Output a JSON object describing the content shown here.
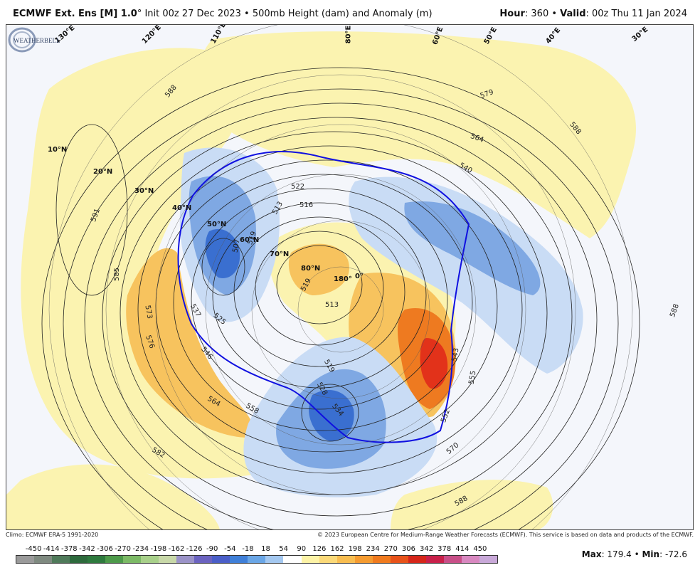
{
  "header": {
    "model": "ECMWF Ext. Ens [M] 1.0",
    "degree": "°",
    "init": " Init 00z 27 Dec 2023 • 500mb Height (dam) and Anomaly (m)",
    "hour_label": "Hour",
    "hour_value": ": 360 • ",
    "valid_label": "Valid",
    "valid_value": ": 00z Thu 11 Jan 2024"
  },
  "map": {
    "latitude_labels": [
      "10°N",
      "20°N",
      "30°N",
      "40°N",
      "50°N",
      "60°N",
      "70°N",
      "80°N"
    ],
    "longitude_labels": [
      "130°E",
      "120°E",
      "110°E",
      "80°E",
      "60°E",
      "50°E",
      "40°E",
      "30°E",
      "180°",
      "0°"
    ],
    "contour_labels": [
      "588",
      "591",
      "585",
      "573",
      "576",
      "537",
      "525",
      "546",
      "564",
      "558",
      "582",
      "579",
      "588",
      "564",
      "540",
      "522",
      "516",
      "513",
      "519",
      "513",
      "507",
      "519",
      "543",
      "555",
      "552",
      "570",
      "528",
      "534",
      "519",
      "588",
      "588"
    ],
    "colors": {
      "positive_light": "#fbf3b0",
      "positive_mid": "#f7c35e",
      "positive_strong": "#ee7a20",
      "positive_max": "#e2321a",
      "negative_light": "#c9dcf5",
      "negative_mid": "#7fa8e3",
      "negative_strong": "#3a6fd0",
      "contour_546": "#1010e0"
    },
    "logo_text": "WEATHERBELL"
  },
  "credits": {
    "climo": "Climo: ECMWF ERA-5 1991-2020",
    "copyright": "© 2023 European Centre for Medium-Range Weather Forecasts (ECMWF). This service is based on data and products of the ECMWF."
  },
  "scale": {
    "ticks": [
      "-450",
      "-414",
      "-378",
      "-342",
      "-306",
      "-270",
      "-234",
      "-198",
      "-162",
      "-126",
      "-90",
      "-54",
      "-18",
      "18",
      "54",
      "90",
      "126",
      "162",
      "198",
      "234",
      "270",
      "306",
      "342",
      "378",
      "414",
      "450"
    ],
    "colors": [
      "#9a9a9a",
      "#7f8a80",
      "#4f7a5a",
      "#2d6a3c",
      "#2e7a3e",
      "#4d9a4a",
      "#7cba66",
      "#a8d08a",
      "#c8d8a8",
      "#9b93c8",
      "#6b63c0",
      "#4a5ec8",
      "#3f7fd8",
      "#6aa6e6",
      "#a4c8f0",
      "#ffffff",
      "#fdf3a6",
      "#fbd978",
      "#f8bd50",
      "#f59b30",
      "#f07a1e",
      "#e8521a",
      "#d6261a",
      "#c8204a",
      "#c84f88",
      "#d888c0",
      "#c8a8d8"
    ]
  },
  "stats": {
    "max_label": "Max",
    "max_value": ": 179.4 • ",
    "min_label": "Min",
    "min_value": ": -72.6"
  }
}
